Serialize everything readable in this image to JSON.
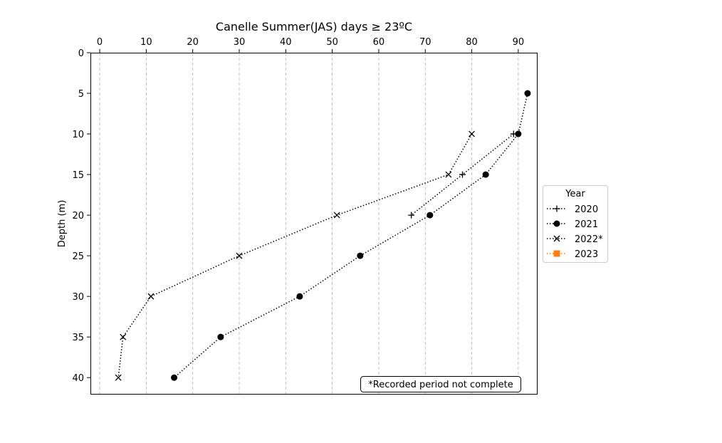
{
  "chart_data": {
    "type": "line",
    "title": "Canelle Summer(JAS) days ≥ 23ºC",
    "xlabel": "",
    "ylabel": "Depth (m)",
    "xlim": [
      -2,
      94
    ],
    "ylim": [
      42,
      0
    ],
    "x_ticks": [
      "0",
      "10",
      "20",
      "30",
      "40",
      "50",
      "60",
      "70",
      "80",
      "90"
    ],
    "y_ticks": [
      "0",
      "5",
      "10",
      "15",
      "20",
      "25",
      "30",
      "35",
      "40"
    ],
    "x_axis_position": "top",
    "y_axis_inverted": true,
    "grid": "vertical dashed",
    "legend": {
      "title": "Year",
      "placement": "center-right outside"
    },
    "annotation": "*Recorded period not complete",
    "series": [
      {
        "name": "2020",
        "marker": "plus",
        "color": "#000000",
        "linestyle": "dotted",
        "points": [
          {
            "x": 89,
            "y": 10
          },
          {
            "x": 78,
            "y": 15
          },
          {
            "x": 67,
            "y": 20
          }
        ]
      },
      {
        "name": "2021",
        "marker": "circle",
        "color": "#000000",
        "linestyle": "dotted",
        "points": [
          {
            "x": 92,
            "y": 5
          },
          {
            "x": 90,
            "y": 10
          },
          {
            "x": 83,
            "y": 15
          },
          {
            "x": 71,
            "y": 20
          },
          {
            "x": 56,
            "y": 25
          },
          {
            "x": 43,
            "y": 30
          },
          {
            "x": 26,
            "y": 35
          },
          {
            "x": 16,
            "y": 40
          }
        ]
      },
      {
        "name": "2022*",
        "marker": "x",
        "color": "#000000",
        "linestyle": "dotted",
        "points": [
          {
            "x": 80,
            "y": 10
          },
          {
            "x": 75,
            "y": 15
          },
          {
            "x": 51,
            "y": 20
          },
          {
            "x": 30,
            "y": 25
          },
          {
            "x": 11,
            "y": 30
          },
          {
            "x": 5,
            "y": 35
          },
          {
            "x": 4,
            "y": 40
          }
        ]
      },
      {
        "name": "2023",
        "marker": "square",
        "color": "#ff7f0e",
        "linestyle": "dotted",
        "points": []
      }
    ]
  }
}
